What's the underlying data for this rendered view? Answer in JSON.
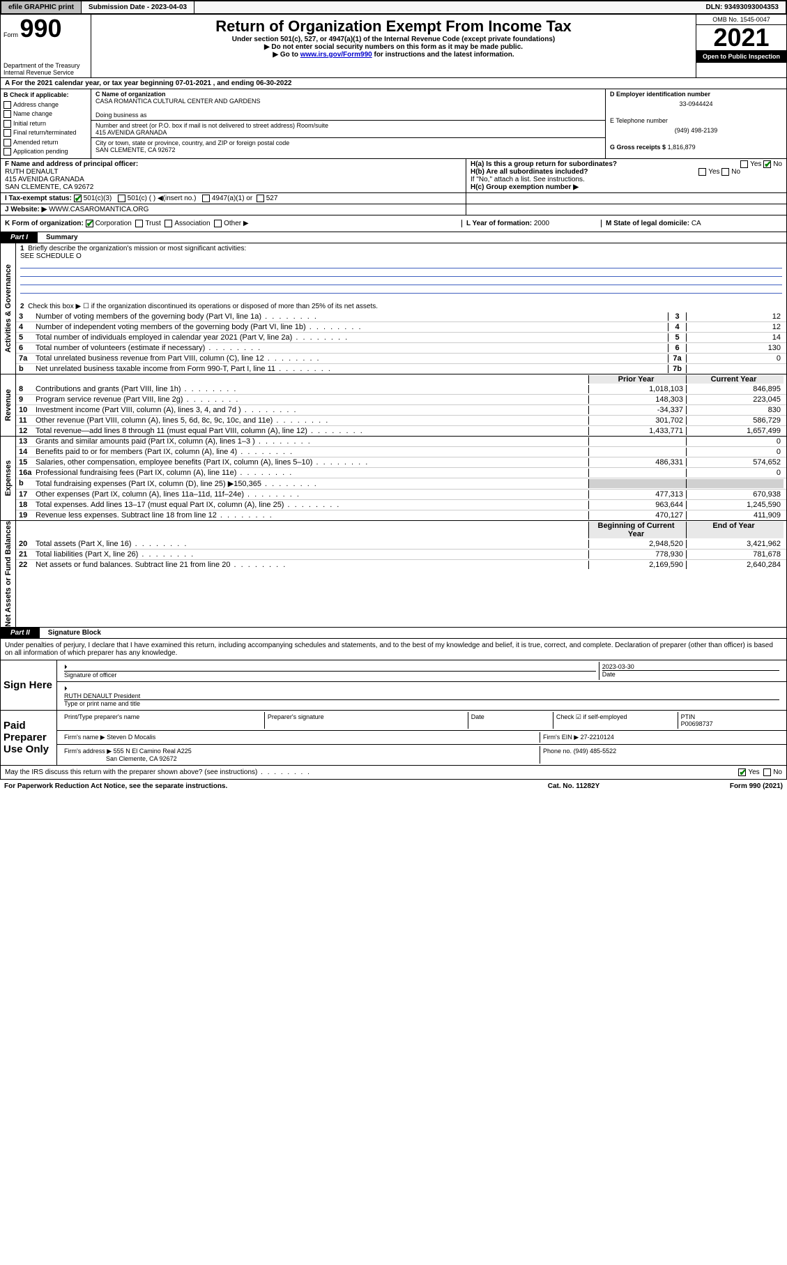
{
  "top": {
    "efile": "efile GRAPHIC print",
    "submission_label": "Submission Date - 2023-04-03",
    "dln": "DLN: 93493093004353"
  },
  "header": {
    "form_label": "Form",
    "form990": "990",
    "dept": "Department of the Treasury\nInternal Revenue Service",
    "title": "Return of Organization Exempt From Income Tax",
    "subtitle": "Under section 501(c), 527, or 4947(a)(1) of the Internal Revenue Code (except private foundations)",
    "note1": "▶ Do not enter social security numbers on this form as it may be made public.",
    "note2_pre": "▶ Go to ",
    "note2_link": "www.irs.gov/Form990",
    "note2_post": " for instructions and the latest information.",
    "omb": "OMB No. 1545-0047",
    "year": "2021",
    "open": "Open to Public Inspection"
  },
  "rowA": "A For the 2021 calendar year, or tax year beginning 07-01-2021   , and ending 06-30-2022",
  "secB": {
    "title": "B Check if applicable:",
    "opts": [
      "Address change",
      "Name change",
      "Initial return",
      "Final return/terminated",
      "Amended return",
      "Application pending"
    ],
    "c_label": "C Name of organization",
    "c_name": "CASA ROMANTICA CULTURAL CENTER AND GARDENS",
    "dba": "Doing business as",
    "addr_label": "Number and street (or P.O. box if mail is not delivered to street address)       Room/suite",
    "addr": "415 AVENIDA GRANADA",
    "city_label": "City or town, state or province, country, and ZIP or foreign postal code",
    "city": "SAN CLEMENTE, CA  92672",
    "d_label": "D Employer identification number",
    "d_val": "33-0944424",
    "e_label": "E Telephone number",
    "e_val": "(949) 498-2139",
    "g_label": "G Gross receipts $",
    "g_val": "1,816,879"
  },
  "secF": {
    "f_label": "F  Name and address of principal officer:",
    "f_name": "RUTH DENAULT",
    "f_addr1": "415 AVENIDA GRANADA",
    "f_addr2": "SAN CLEMENTE, CA  92672",
    "ha": "H(a)  Is this a group return for subordinates?",
    "ha_answer_yes": "Yes",
    "ha_answer_no": "No",
    "hb": "H(b)  Are all subordinates included?",
    "hb_note": "If \"No,\" attach a list. See instructions.",
    "hc": "H(c)  Group exemption number ▶"
  },
  "secI": {
    "label": "I    Tax-exempt status:",
    "c3": "501(c)(3)",
    "c": "501(c) (  ) ◀(insert no.)",
    "a1": "4947(a)(1) or",
    "s527": "527"
  },
  "secJ": {
    "label": "J    Website: ▶",
    "val": "WWW.CASAROMANTICA.ORG"
  },
  "secK": {
    "label": "K Form of organization:",
    "corp": "Corporation",
    "trust": "Trust",
    "assoc": "Association",
    "other": "Other ▶",
    "l_label": "L Year of formation:",
    "l_val": "2000",
    "m_label": "M State of legal domicile:",
    "m_val": "CA"
  },
  "part1": {
    "tab": "Part I",
    "title": "Summary",
    "l1": "Briefly describe the organization's mission or most significant activities:",
    "l1_val": "SEE SCHEDULE O",
    "l2": "Check this box ▶ ☐  if the organization discontinued its operations or disposed of more than 25% of its net assets.",
    "vtab_gov": "Activities & Governance",
    "vtab_rev": "Revenue",
    "vtab_exp": "Expenses",
    "vtab_net": "Net Assets or Fund Balances",
    "col_prior": "Prior Year",
    "col_current": "Current Year",
    "col_beg": "Beginning of Current Year",
    "col_end": "End of Year",
    "lines_gov": [
      {
        "n": "3",
        "d": "Number of voting members of the governing body (Part VI, line 1a)",
        "b": "3",
        "v": "12"
      },
      {
        "n": "4",
        "d": "Number of independent voting members of the governing body (Part VI, line 1b)",
        "b": "4",
        "v": "12"
      },
      {
        "n": "5",
        "d": "Total number of individuals employed in calendar year 2021 (Part V, line 2a)",
        "b": "5",
        "v": "14"
      },
      {
        "n": "6",
        "d": "Total number of volunteers (estimate if necessary)",
        "b": "6",
        "v": "130"
      },
      {
        "n": "7a",
        "d": "Total unrelated business revenue from Part VIII, column (C), line 12",
        "b": "7a",
        "v": "0"
      },
      {
        "n": "b",
        "d": "Net unrelated business taxable income from Form 990-T, Part I, line 11",
        "b": "7b",
        "v": ""
      }
    ],
    "lines_rev": [
      {
        "n": "8",
        "d": "Contributions and grants (Part VIII, line 1h)",
        "p": "1,018,103",
        "c": "846,895"
      },
      {
        "n": "9",
        "d": "Program service revenue (Part VIII, line 2g)",
        "p": "148,303",
        "c": "223,045"
      },
      {
        "n": "10",
        "d": "Investment income (Part VIII, column (A), lines 3, 4, and 7d )",
        "p": "-34,337",
        "c": "830"
      },
      {
        "n": "11",
        "d": "Other revenue (Part VIII, column (A), lines 5, 6d, 8c, 9c, 10c, and 11e)",
        "p": "301,702",
        "c": "586,729"
      },
      {
        "n": "12",
        "d": "Total revenue—add lines 8 through 11 (must equal Part VIII, column (A), line 12)",
        "p": "1,433,771",
        "c": "1,657,499"
      }
    ],
    "lines_exp": [
      {
        "n": "13",
        "d": "Grants and similar amounts paid (Part IX, column (A), lines 1–3 )",
        "p": "",
        "c": "0"
      },
      {
        "n": "14",
        "d": "Benefits paid to or for members (Part IX, column (A), line 4)",
        "p": "",
        "c": "0"
      },
      {
        "n": "15",
        "d": "Salaries, other compensation, employee benefits (Part IX, column (A), lines 5–10)",
        "p": "486,331",
        "c": "574,652"
      },
      {
        "n": "16a",
        "d": "Professional fundraising fees (Part IX, column (A), line 11e)",
        "p": "",
        "c": "0"
      },
      {
        "n": "b",
        "d": "Total fundraising expenses (Part IX, column (D), line 25) ▶150,365",
        "p": "",
        "c": "",
        "shaded": true
      },
      {
        "n": "17",
        "d": "Other expenses (Part IX, column (A), lines 11a–11d, 11f–24e)",
        "p": "477,313",
        "c": "670,938"
      },
      {
        "n": "18",
        "d": "Total expenses. Add lines 13–17 (must equal Part IX, column (A), line 25)",
        "p": "963,644",
        "c": "1,245,590"
      },
      {
        "n": "19",
        "d": "Revenue less expenses. Subtract line 18 from line 12",
        "p": "470,127",
        "c": "411,909"
      }
    ],
    "lines_net": [
      {
        "n": "20",
        "d": "Total assets (Part X, line 16)",
        "p": "2,948,520",
        "c": "3,421,962"
      },
      {
        "n": "21",
        "d": "Total liabilities (Part X, line 26)",
        "p": "778,930",
        "c": "781,678"
      },
      {
        "n": "22",
        "d": "Net assets or fund balances. Subtract line 21 from line 20",
        "p": "2,169,590",
        "c": "2,640,284"
      }
    ]
  },
  "part2": {
    "tab": "Part II",
    "title": "Signature Block",
    "text": "Under penalties of perjury, I declare that I have examined this return, including accompanying schedules and statements, and to the best of my knowledge and belief, it is true, correct, and complete. Declaration of preparer (other than officer) is based on all information of which preparer has any knowledge."
  },
  "sign": {
    "label": "Sign Here",
    "sig_officer": "Signature of officer",
    "date": "Date",
    "date_val": "2023-03-30",
    "name": "RUTH DENAULT President",
    "name_label": "Type or print name and title"
  },
  "preparer": {
    "label": "Paid Preparer Use Only",
    "c1": "Print/Type preparer's name",
    "c2": "Preparer's signature",
    "c3": "Date",
    "c4_check": "Check ☑ if self-employed",
    "c5": "PTIN",
    "c5_val": "P00698737",
    "firm_name_label": "Firm's name    ▶",
    "firm_name": "Steven D Mocalis",
    "firm_ein_label": "Firm's EIN ▶",
    "firm_ein": "27-2210124",
    "firm_addr_label": "Firm's address ▶",
    "firm_addr1": "555 N El Camino Real A225",
    "firm_addr2": "San Clemente, CA  92672",
    "phone_label": "Phone no.",
    "phone": "(949) 485-5522"
  },
  "discuss": {
    "text": "May the IRS discuss this return with the preparer shown above? (see instructions)",
    "yes": "Yes",
    "no": "No"
  },
  "footer": {
    "left": "For Paperwork Reduction Act Notice, see the separate instructions.",
    "mid": "Cat. No. 11282Y",
    "right": "Form 990 (2021)"
  }
}
